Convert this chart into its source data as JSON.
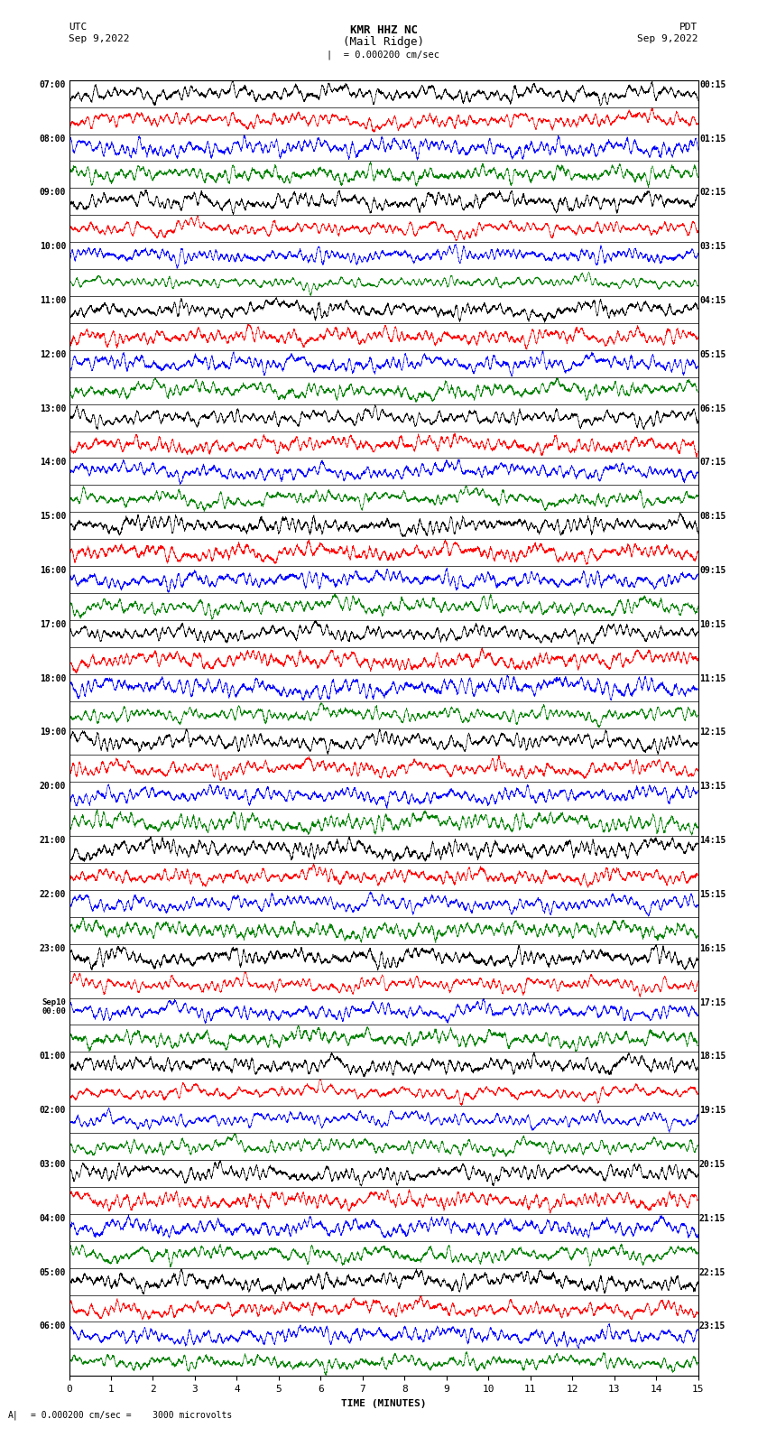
{
  "title_line1": "KMR HHZ NC",
  "title_line2": "(Mail Ridge)",
  "scale_text": "= 0.000200 cm/sec",
  "left_label_top": "UTC",
  "left_label_date": "Sep 9,2022",
  "right_label_top": "PDT",
  "right_label_date": "Sep 9,2022",
  "bottom_label": "TIME (MINUTES)",
  "bottom_note": "= 0.000200 cm/sec =    3000 microvolts",
  "utc_times": [
    "07:00",
    "08:00",
    "09:00",
    "10:00",
    "11:00",
    "12:00",
    "13:00",
    "14:00",
    "15:00",
    "16:00",
    "17:00",
    "18:00",
    "19:00",
    "20:00",
    "21:00",
    "22:00",
    "23:00",
    "Sep10\n00:00",
    "01:00",
    "02:00",
    "03:00",
    "04:00",
    "05:00",
    "06:00"
  ],
  "pdt_times": [
    "00:15",
    "01:15",
    "02:15",
    "03:15",
    "04:15",
    "05:15",
    "06:15",
    "07:15",
    "08:15",
    "09:15",
    "10:15",
    "11:15",
    "12:15",
    "13:15",
    "14:15",
    "15:15",
    "16:15",
    "17:15",
    "18:15",
    "19:15",
    "20:15",
    "21:15",
    "22:15",
    "23:15"
  ],
  "n_rows": 48,
  "n_samples": 4500,
  "colors": [
    "black",
    "red",
    "blue",
    "green"
  ],
  "fig_width": 8.5,
  "fig_height": 16.13,
  "dpi": 100,
  "xlim": [
    0,
    15
  ],
  "xticks": [
    0,
    1,
    2,
    3,
    4,
    5,
    6,
    7,
    8,
    9,
    10,
    11,
    12,
    13,
    14,
    15
  ],
  "amplitude": 0.48,
  "background_color": "white"
}
